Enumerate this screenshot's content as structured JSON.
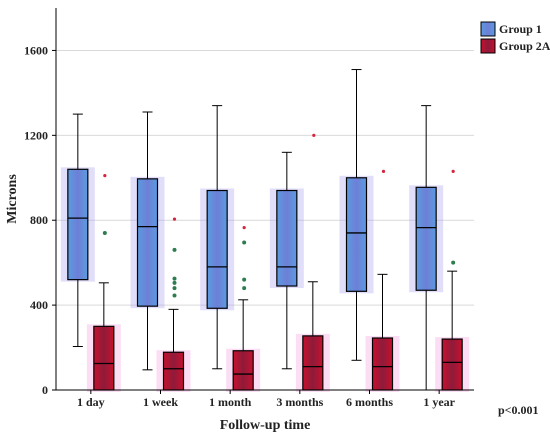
{
  "chart_data": {
    "type": "boxplot",
    "xlabel": "Follow-up time",
    "ylabel": "Microns",
    "ylim": [
      0,
      1800
    ],
    "yticks": [
      0,
      400,
      800,
      1200,
      1600
    ],
    "grid": "horizontal",
    "legend_position": "top-right",
    "note": "p<0.001",
    "categories": [
      "1 day",
      "1 week",
      "1 month",
      "3 months",
      "6 months",
      "1 year"
    ],
    "series": [
      {
        "name": "Group 1",
        "color": "#4a90d9",
        "boxes": [
          {
            "whisker_low": 205,
            "q1": 520,
            "median": 810,
            "q3": 1040,
            "whisker_high": 1300,
            "outliers": []
          },
          {
            "whisker_low": 95,
            "q1": 395,
            "median": 770,
            "q3": 995,
            "whisker_high": 1310,
            "outliers": []
          },
          {
            "whisker_low": 100,
            "q1": 385,
            "median": 580,
            "q3": 940,
            "whisker_high": 1340,
            "outliers": []
          },
          {
            "whisker_low": 100,
            "q1": 490,
            "median": 580,
            "q3": 940,
            "whisker_high": 1120,
            "outliers": []
          },
          {
            "whisker_low": 140,
            "q1": 465,
            "median": 740,
            "q3": 1000,
            "whisker_high": 1510,
            "outliers": []
          },
          {
            "whisker_low": 0,
            "q1": 470,
            "median": 765,
            "q3": 955,
            "whisker_high": 1340,
            "outliers": []
          }
        ]
      },
      {
        "name": "Group 2A",
        "color": "#c8102e",
        "boxes": [
          {
            "whisker_low": 0,
            "q1": 0,
            "median": 125,
            "q3": 300,
            "whisker_high": 505,
            "outliers": [
              740,
              1010
            ]
          },
          {
            "whisker_low": 0,
            "q1": 0,
            "median": 100,
            "q3": 178,
            "whisker_high": 380,
            "outliers": [
              445,
              480,
              505,
              525,
              660,
              805
            ]
          },
          {
            "whisker_low": 0,
            "q1": 0,
            "median": 75,
            "q3": 185,
            "whisker_high": 425,
            "outliers": [
              480,
              520,
              695,
              765
            ]
          },
          {
            "whisker_low": 0,
            "q1": 0,
            "median": 110,
            "q3": 255,
            "whisker_high": 510,
            "outliers": [
              1200
            ]
          },
          {
            "whisker_low": 0,
            "q1": 0,
            "median": 110,
            "q3": 245,
            "whisker_high": 545,
            "outliers": [
              1030
            ]
          },
          {
            "whisker_low": 0,
            "q1": 0,
            "median": 130,
            "q3": 240,
            "whisker_high": 560,
            "outliers": [
              600,
              1030
            ]
          }
        ]
      }
    ]
  }
}
